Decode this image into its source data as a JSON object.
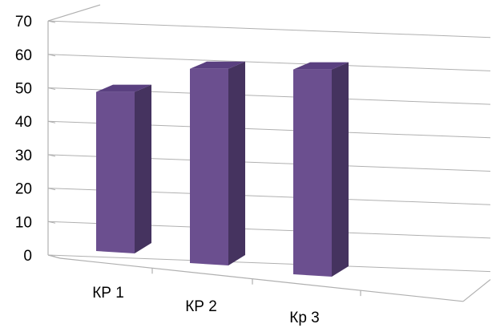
{
  "chart_data": {
    "type": "bar",
    "categories": [
      "КР 1",
      "КР 2",
      "Кр 3"
    ],
    "values": [
      46,
      56,
      59
    ],
    "title": "",
    "xlabel": "",
    "ylabel": "",
    "ylim": [
      0,
      70
    ],
    "y_ticks": [
      0,
      10,
      20,
      30,
      40,
      50,
      60,
      70
    ],
    "grid": true,
    "legend": "none",
    "style": "3d-column",
    "colors": {
      "bar_front": "#6b4f8f",
      "bar_top": "#5a4080",
      "bar_side": "#45335f",
      "grid": "#b0b0b0"
    }
  }
}
